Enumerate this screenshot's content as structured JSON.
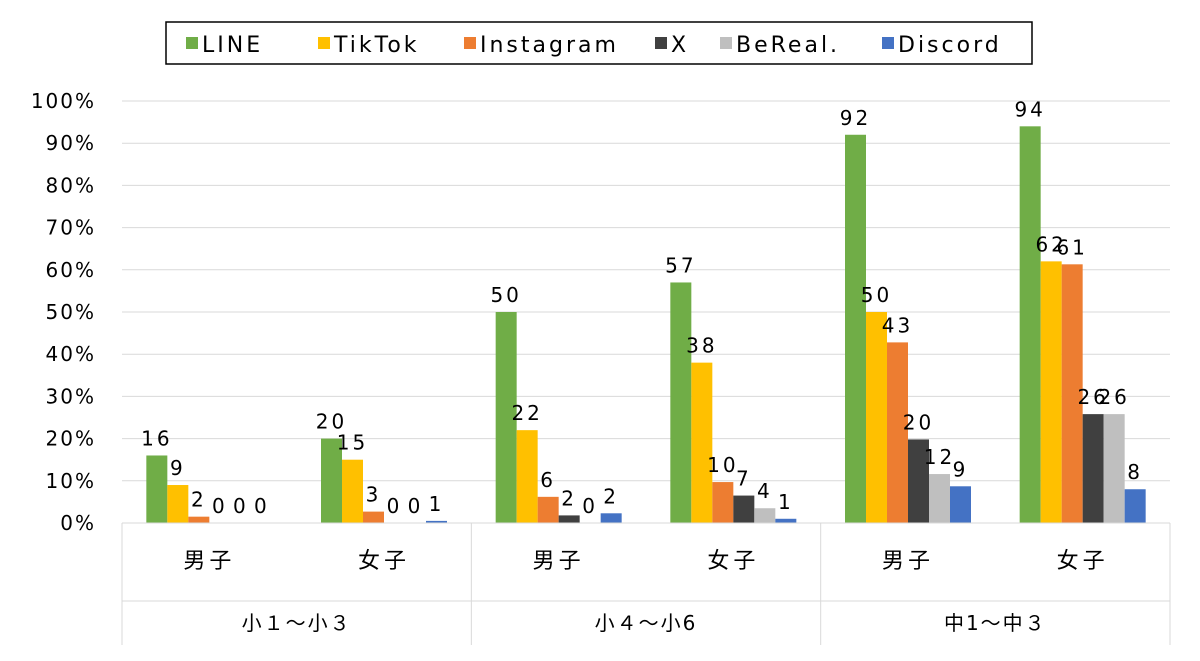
{
  "chart_data": {
    "type": "bar",
    "title": "",
    "xlabel": "",
    "ylabel": "",
    "ylim": [
      0,
      100
    ],
    "y_ticks": [
      "0%",
      "10%",
      "20%",
      "30%",
      "40%",
      "50%",
      "60%",
      "70%",
      "80%",
      "90%",
      "100%"
    ],
    "grid": "horizontal",
    "legend_position": "top",
    "groups": [
      {
        "label": "小１～小３",
        "categories": [
          "男子",
          "女子"
        ]
      },
      {
        "label": "小４～小6",
        "categories": [
          "男子",
          "女子"
        ]
      },
      {
        "label": "中1～中３",
        "categories": [
          "男子",
          "女子"
        ]
      }
    ],
    "categories": [
      "男子",
      "女子",
      "男子",
      "女子",
      "男子",
      "女子"
    ],
    "series": [
      {
        "name": "LINE",
        "color": "#70AD47",
        "values": [
          16,
          20,
          50,
          57,
          92,
          94
        ],
        "labels": [
          "16",
          "20",
          "50",
          "57",
          "92",
          "94"
        ]
      },
      {
        "name": "TikTok",
        "color": "#FFC000",
        "values": [
          9,
          15,
          22,
          38,
          50,
          62
        ],
        "labels": [
          "9",
          "15",
          "22",
          "38",
          "50",
          "62"
        ]
      },
      {
        "name": "Instagram",
        "color": "#ED7D31",
        "values": [
          1.5,
          2.7,
          6.2,
          9.7,
          42.8,
          61.3
        ],
        "labels": [
          "2",
          "3",
          "6",
          "10",
          "43",
          "61"
        ]
      },
      {
        "name": "X",
        "color": "#404040",
        "values": [
          0,
          0,
          1.8,
          6.5,
          19.8,
          25.8
        ],
        "labels": [
          "0",
          "0",
          "2",
          "7",
          "20",
          "26"
        ]
      },
      {
        "name": "BeReal.",
        "color": "#BFBFBF",
        "values": [
          0,
          0,
          0,
          3.5,
          11.6,
          25.8
        ],
        "labels": [
          "0",
          "0",
          "0",
          "4",
          "12",
          "26"
        ]
      },
      {
        "name": "Discord",
        "color": "#4472C4",
        "values": [
          0,
          0.5,
          2.3,
          1,
          8.7,
          8
        ],
        "labels": [
          "0",
          "1",
          "2",
          "1",
          "9",
          "8"
        ]
      }
    ]
  }
}
